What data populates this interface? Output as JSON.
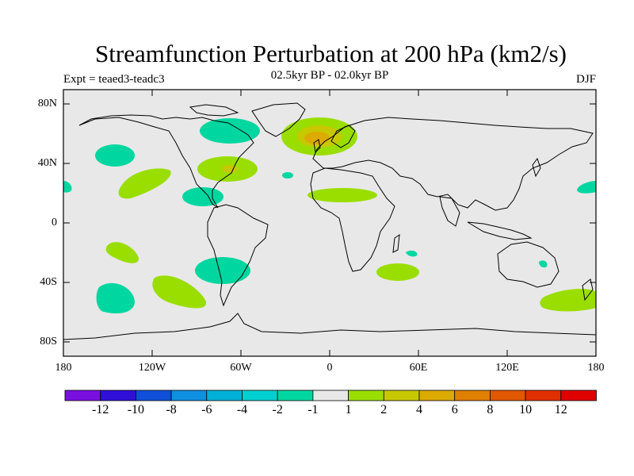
{
  "title": "Streamfunction Perturbation at 200 hPa (km2/s)",
  "experiment": "Expt = teaed3-teadc3",
  "period": "02.5kyr BP - 02.0kyr BP",
  "season": "DJF",
  "colors": {
    "background": "#e8e8e8",
    "neg1": "#00d7a0",
    "neg2": "#00cfcf",
    "pos1": "#9ade00",
    "pos2": "#c8c800",
    "pos3": "#dcaa00"
  },
  "lat_labels": [
    "80N",
    "40N",
    "0",
    "40S",
    "80S"
  ],
  "lon_labels": [
    "180",
    "120W",
    "60W",
    "0",
    "60E",
    "120E",
    "180"
  ],
  "colorbar": {
    "colors": [
      "#7a10e0",
      "#3010d8",
      "#1050d8",
      "#1090e0",
      "#00b0d8",
      "#00cfcf",
      "#00d7a0",
      "#e8e8e8",
      "#9ade00",
      "#c8c800",
      "#dcaa00",
      "#e08000",
      "#e05800",
      "#e03000",
      "#e00000"
    ],
    "labels": [
      "-12",
      "-10",
      "-8",
      "-6",
      "-4",
      "-2",
      "-1",
      "1",
      "2",
      "4",
      "6",
      "8",
      "10",
      "12"
    ]
  }
}
